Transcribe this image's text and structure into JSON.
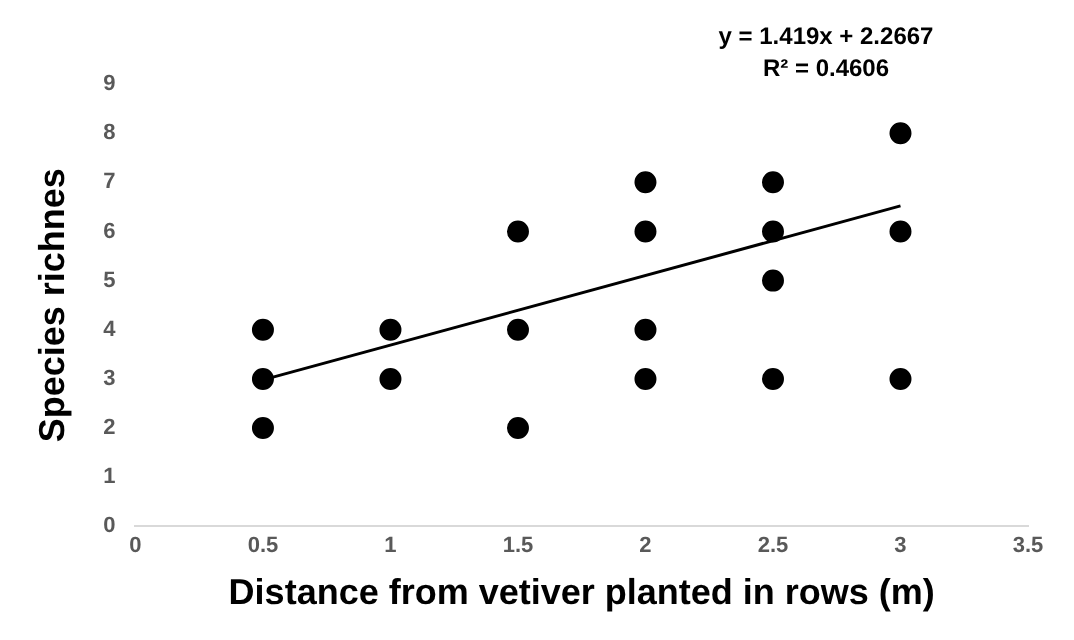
{
  "chart_data": {
    "type": "scatter",
    "xlabel": "Distance from vetiver planted in rows (m)",
    "ylabel": "Species richnes",
    "annotations": [
      "y = 1.419x + 2.2667",
      "R² = 0.4606"
    ],
    "series": [
      {
        "color": "#000000",
        "marker": "circle",
        "x": [
          0.5,
          0.5,
          0.5,
          1,
          1,
          1.5,
          1.5,
          1.5,
          2,
          2,
          2,
          2,
          2.5,
          2.5,
          2.5,
          2.5,
          3,
          3,
          3
        ],
        "values": [
          4,
          3,
          2,
          4,
          3,
          6,
          4,
          2,
          7,
          6,
          4,
          3,
          7,
          6,
          5,
          3,
          8,
          6,
          3
        ]
      },
      {
        "type": "line",
        "color": "#000000",
        "marker": "none",
        "x": [
          0.5,
          3
        ],
        "values": [
          2.98,
          6.52
        ]
      }
    ],
    "grid": false,
    "legend": false,
    "xlim": [
      0,
      3.5
    ],
    "xticks": [
      0,
      0.5,
      1,
      1.5,
      2,
      2.5,
      3,
      3.5
    ],
    "ylim": [
      0,
      9
    ],
    "yticks": [
      0,
      1,
      2,
      3,
      4,
      5,
      6,
      7,
      8,
      9
    ]
  }
}
